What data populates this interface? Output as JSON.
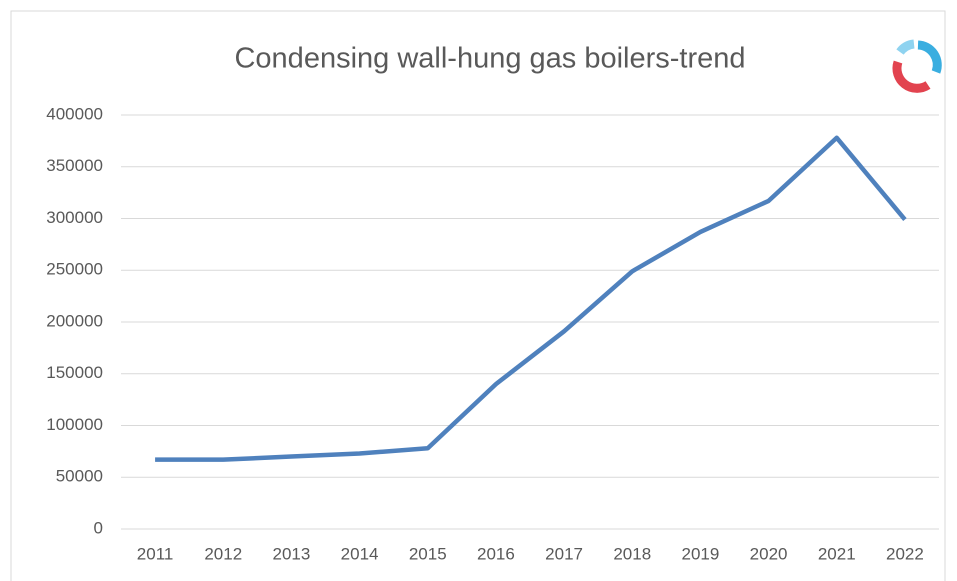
{
  "chart_data": {
    "type": "line",
    "title": "Condensing wall-hung gas boilers-trend",
    "categories": [
      "2011",
      "2012",
      "2013",
      "2014",
      "2015",
      "2016",
      "2017",
      "2018",
      "2019",
      "2020",
      "2021",
      "2022"
    ],
    "series": [
      {
        "name": "Condensing wall-hung gas boilers",
        "color": "#4f81bd",
        "values": [
          67000,
          67000,
          70000,
          73000,
          78000,
          140000,
          191000,
          249000,
          287000,
          317000,
          378000,
          299000
        ]
      }
    ],
    "ylim": [
      0,
      400000
    ],
    "yticks": [
      0,
      50000,
      100000,
      150000,
      200000,
      250000,
      300000,
      350000,
      400000
    ],
    "grid": true,
    "legend": false
  }
}
